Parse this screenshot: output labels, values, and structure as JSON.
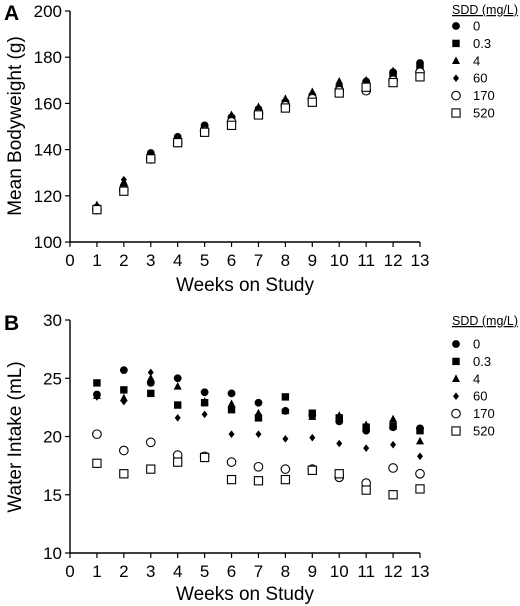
{
  "chart_data": [
    {
      "panel": "A",
      "type": "scatter",
      "xlabel": "Weeks on Study",
      "ylabel": "Mean Bodyweight (g)",
      "xlim": [
        0,
        13
      ],
      "ylim": [
        100,
        200
      ],
      "xticks": [
        "0",
        "1",
        "2",
        "3",
        "4",
        "5",
        "6",
        "7",
        "8",
        "9",
        "10",
        "11",
        "12",
        "13"
      ],
      "yticks": [
        "100",
        "120",
        "140",
        "160",
        "180",
        "200"
      ],
      "legend_title": "SDD (mg/L)",
      "legend_position": "right",
      "x": [
        1,
        2,
        3,
        4,
        5,
        6,
        7,
        8,
        9,
        10,
        11,
        12,
        13
      ],
      "series": [
        {
          "name": "0",
          "marker": "circle-filled",
          "values": [
            115,
            124,
            138.5,
            145.5,
            150.5,
            154,
            157.5,
            160.5,
            163.5,
            167,
            169.5,
            173.5,
            177.5
          ]
        },
        {
          "name": "0.3",
          "marker": "square-filled",
          "values": [
            114.5,
            123,
            137,
            144,
            149,
            153,
            156,
            160,
            162.5,
            166,
            168,
            172,
            175.5
          ]
        },
        {
          "name": "4",
          "marker": "triangle-filled",
          "values": [
            116,
            126,
            138,
            145.5,
            150,
            155,
            158.5,
            162,
            165,
            169.5,
            170,
            174,
            177
          ]
        },
        {
          "name": "60",
          "marker": "diamond-filled",
          "values": [
            115.5,
            127,
            137.5,
            145,
            149.5,
            154.5,
            158,
            161.5,
            164,
            168,
            169,
            173,
            176
          ]
        },
        {
          "name": "170",
          "marker": "circle-open",
          "values": [
            114,
            122.5,
            136,
            143,
            148,
            152,
            155.5,
            159,
            162,
            165.5,
            165.5,
            170,
            173.5
          ]
        },
        {
          "name": "520",
          "marker": "square-open",
          "values": [
            114,
            122,
            136,
            143,
            147.5,
            150.5,
            155,
            158,
            160.5,
            164.5,
            167,
            169,
            171.5
          ]
        }
      ]
    },
    {
      "panel": "B",
      "type": "scatter",
      "xlabel": "Weeks on Study",
      "ylabel": "Water Intake (mL)",
      "xlim": [
        0,
        13
      ],
      "ylim": [
        10,
        30
      ],
      "xticks": [
        "0",
        "1",
        "2",
        "3",
        "4",
        "5",
        "6",
        "7",
        "8",
        "9",
        "10",
        "11",
        "12",
        "13"
      ],
      "yticks": [
        "10",
        "15",
        "20",
        "25",
        "30"
      ],
      "legend_title": "SDD (mg/L)",
      "legend_position": "right",
      "x": [
        1,
        2,
        3,
        4,
        5,
        6,
        7,
        8,
        9,
        10,
        11,
        12,
        13
      ],
      "series": [
        {
          "name": "0",
          "marker": "circle-filled",
          "values": [
            23.6,
            25.7,
            24.6,
            25.0,
            23.8,
            23.7,
            22.9,
            22.2,
            21.8,
            21.3,
            20.5,
            20.8,
            20.7
          ]
        },
        {
          "name": "0.3",
          "marker": "square-filled",
          "values": [
            24.6,
            24.0,
            23.7,
            22.7,
            22.9,
            22.3,
            21.6,
            23.4,
            22.0,
            21.6,
            20.8,
            20.9,
            20.5
          ]
        },
        {
          "name": "4",
          "marker": "triangle-filled",
          "values": [
            23.5,
            23.3,
            25.0,
            24.3,
            23.0,
            22.8,
            22.0,
            22.2,
            21.7,
            21.8,
            21.0,
            21.5,
            19.6
          ]
        },
        {
          "name": "60",
          "marker": "diamond-filled",
          "values": [
            23.4,
            23.0,
            25.5,
            21.6,
            21.9,
            20.2,
            20.2,
            19.8,
            19.9,
            19.4,
            19.0,
            19.3,
            18.3
          ]
        },
        {
          "name": "170",
          "marker": "circle-open",
          "values": [
            20.2,
            18.8,
            19.5,
            18.4,
            18.3,
            17.8,
            17.4,
            17.2,
            17.2,
            16.5,
            16.0,
            17.3,
            16.8
          ]
        },
        {
          "name": "520",
          "marker": "square-open",
          "values": [
            17.7,
            16.8,
            17.2,
            17.8,
            18.2,
            16.3,
            16.2,
            16.3,
            17.1,
            16.8,
            15.4,
            15.0,
            15.5
          ]
        }
      ]
    }
  ]
}
